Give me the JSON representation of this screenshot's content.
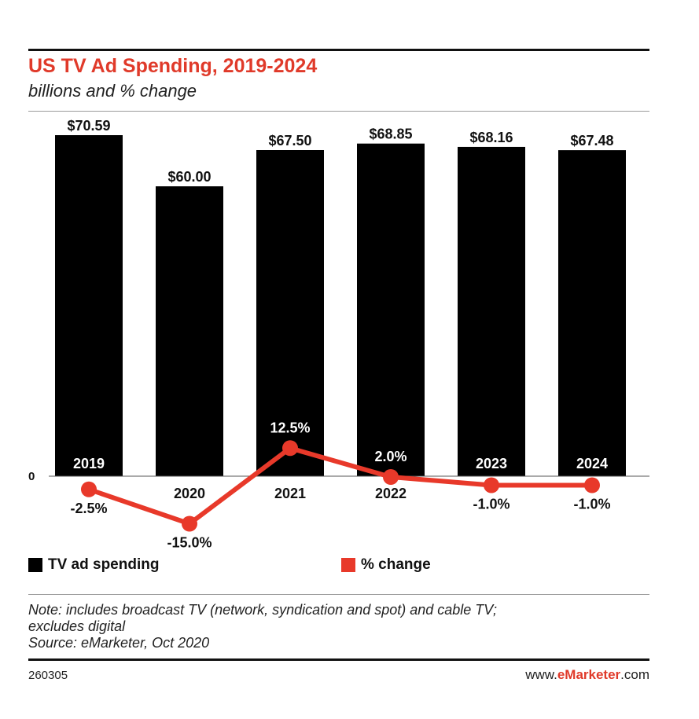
{
  "header": {
    "title": "US TV Ad Spending, 2019-2024",
    "subtitle": "billions and % change"
  },
  "chart_data": {
    "type": "bar",
    "categories": [
      "2019",
      "2020",
      "2021",
      "2022",
      "2023",
      "2024"
    ],
    "series": [
      {
        "name": "TV ad spending",
        "type": "bar",
        "values": [
          70.59,
          60.0,
          67.5,
          68.85,
          68.16,
          67.48
        ],
        "labels": [
          "$70.59",
          "$60.00",
          "$67.50",
          "$68.85",
          "$68.16",
          "$67.48"
        ],
        "color": "#000000"
      },
      {
        "name": "% change",
        "type": "line",
        "values": [
          -2.5,
          -15.0,
          12.5,
          2.0,
          -1.0,
          -1.0
        ],
        "labels": [
          "-2.5%",
          "-15.0%",
          "12.5%",
          "2.0%",
          "-1.0%",
          "-1.0%"
        ],
        "color": "#e8392a"
      }
    ],
    "zero_label": "0",
    "xlabel": "",
    "ylabel": ""
  },
  "legend": {
    "items": [
      {
        "label": "TV ad spending",
        "color": "#000000"
      },
      {
        "label": "% change",
        "color": "#e8392a"
      }
    ]
  },
  "footer": {
    "note_line1": "Note: includes broadcast TV (network, syndication and spot) and cable TV;",
    "note_line2": "excludes digital",
    "source": "Source: eMarketer, Oct 2020",
    "chart_id": "260305",
    "url_prefix": "www.",
    "url_brand": "eMarketer",
    "url_suffix": ".com"
  }
}
